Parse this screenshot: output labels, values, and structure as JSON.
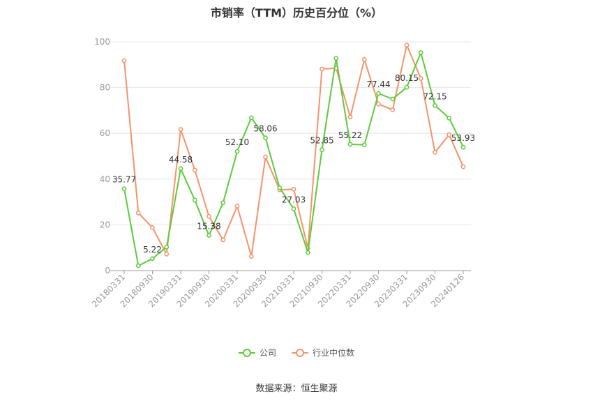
{
  "title": "市销率（TTM）历史百分位（%）",
  "source": "数据来源：恒生聚源",
  "colors": {
    "company": "#5ccb3a",
    "industry": "#f5936a",
    "axis": "#999999",
    "grid": "#e6e6e6"
  },
  "chart_data": {
    "type": "line",
    "title": "市销率（TTM）历史百分位（%）",
    "ylim": [
      0,
      100
    ],
    "yticks": [
      0,
      20,
      40,
      60,
      80,
      100
    ],
    "grid": true,
    "legend_position": "bottom-center",
    "x": [
      "20180331",
      "20180630",
      "20180930",
      "20181231",
      "20190331",
      "20190630",
      "20190930",
      "20191231",
      "20200331",
      "20200630",
      "20200930",
      "20201231",
      "20210331",
      "20210630",
      "20210930",
      "20211231",
      "20220331",
      "20220630",
      "20220930",
      "20221231",
      "20230331",
      "20230630",
      "20230930",
      "20231231",
      "20240126"
    ],
    "xtick_labels": [
      "20180331",
      "20180930",
      "20190331",
      "20190930",
      "20200331",
      "20200930",
      "20210331",
      "20210930",
      "20220331",
      "20220930",
      "20230331",
      "20230930",
      "20240126"
    ],
    "series": [
      {
        "name": "公司",
        "values": [
          35.77,
          2.1,
          5.22,
          10.3,
          44.58,
          30.8,
          15.38,
          29.7,
          52.1,
          66.8,
          58.06,
          36.2,
          27.03,
          7.9,
          52.85,
          92.8,
          55.22,
          55.0,
          77.44,
          75.0,
          80.15,
          95.3,
          72.15,
          66.7,
          53.93
        ]
      },
      {
        "name": "行业中位数",
        "values": [
          91.8,
          25.2,
          18.8,
          7.2,
          61.7,
          43.9,
          23.7,
          13.4,
          28.2,
          6.2,
          49.7,
          35.3,
          35.6,
          9.8,
          88.1,
          88.5,
          67.1,
          92.3,
          72.8,
          70.3,
          98.6,
          84.0,
          51.7,
          59.4,
          45.4
        ]
      }
    ],
    "data_labels": [
      {
        "series": 0,
        "index": 0,
        "text": "35.77"
      },
      {
        "series": 0,
        "index": 2,
        "text": "5.22"
      },
      {
        "series": 0,
        "index": 4,
        "text": "44.58"
      },
      {
        "series": 0,
        "index": 6,
        "text": "15.38"
      },
      {
        "series": 0,
        "index": 8,
        "text": "52.10"
      },
      {
        "series": 0,
        "index": 10,
        "text": "58.06"
      },
      {
        "series": 0,
        "index": 12,
        "text": "27.03"
      },
      {
        "series": 0,
        "index": 14,
        "text": "52.85"
      },
      {
        "series": 0,
        "index": 16,
        "text": "55.22"
      },
      {
        "series": 0,
        "index": 18,
        "text": "77.44"
      },
      {
        "series": 0,
        "index": 20,
        "text": "80.15"
      },
      {
        "series": 0,
        "index": 22,
        "text": "72.15"
      },
      {
        "series": 0,
        "index": 24,
        "text": "53.93"
      }
    ]
  }
}
